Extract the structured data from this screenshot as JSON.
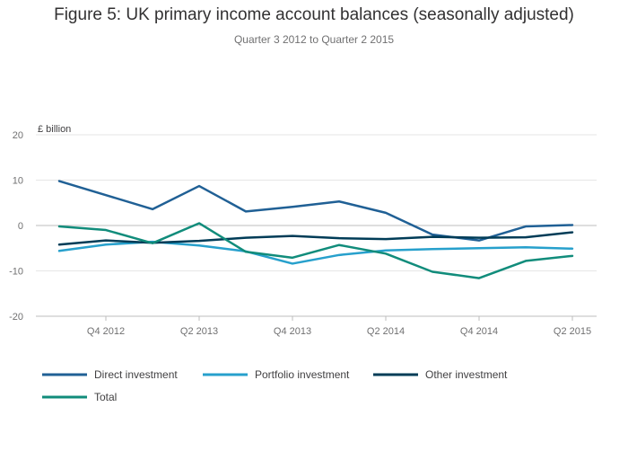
{
  "chart_data": {
    "type": "line",
    "title": "Figure 5: UK primary income account balances (seasonally adjusted)",
    "subtitle": "Quarter 3 2012 to Quarter 2 2015",
    "ylabel": "£ billion",
    "ylim": [
      -20,
      20
    ],
    "yticks": [
      20,
      10,
      0,
      -10,
      -20
    ],
    "x": [
      "Q3 2012",
      "Q4 2012",
      "Q1 2013",
      "Q2 2013",
      "Q3 2013",
      "Q4 2013",
      "Q1 2014",
      "Q2 2014",
      "Q3 2014",
      "Q4 2014",
      "Q1 2015",
      "Q2 2015"
    ],
    "xtick_labels": [
      {
        "index": 1,
        "label": "Q4 2012"
      },
      {
        "index": 3,
        "label": "Q2 2013"
      },
      {
        "index": 5,
        "label": "Q4 2013"
      },
      {
        "index": 7,
        "label": "Q2 2014"
      },
      {
        "index": 9,
        "label": "Q4 2014"
      },
      {
        "index": 11,
        "label": "Q2 2015"
      }
    ],
    "grid": true,
    "legend_position": "bottom",
    "series": [
      {
        "name": "Direct investment",
        "color": "#206095",
        "values": [
          9.8,
          6.7,
          3.6,
          8.7,
          3.1,
          4.1,
          5.3,
          2.8,
          -2.0,
          -3.3,
          -0.2,
          0.1
        ]
      },
      {
        "name": "Portfolio investment",
        "color": "#27a0cc",
        "values": [
          -5.6,
          -4.2,
          -3.6,
          -4.4,
          -5.7,
          -8.4,
          -6.5,
          -5.5,
          -5.2,
          -5.0,
          -4.8,
          -5.1
        ]
      },
      {
        "name": "Other investment",
        "color": "#003c57",
        "values": [
          -4.2,
          -3.3,
          -3.8,
          -3.4,
          -2.7,
          -2.3,
          -2.8,
          -3.0,
          -2.5,
          -2.7,
          -2.6,
          -1.5
        ]
      },
      {
        "name": "Total",
        "color": "#118c7b",
        "values": [
          -0.2,
          -1.0,
          -3.9,
          0.5,
          -5.8,
          -7.1,
          -4.3,
          -6.2,
          -10.2,
          -11.6,
          -7.8,
          -6.7
        ]
      }
    ]
  }
}
